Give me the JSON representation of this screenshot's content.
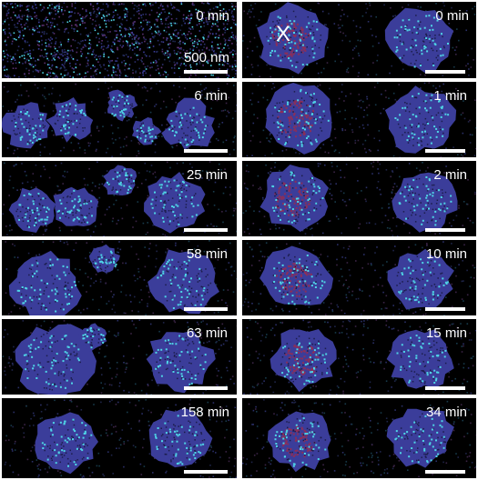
{
  "colors": {
    "background": "#000000",
    "domain_blue": "#3b3d9a",
    "cyan_dots": "#4fd4e6",
    "red_region": "#8a2f5a",
    "frame": "#ffffff"
  },
  "left_column": [
    {
      "time": "0 min",
      "scale_bar_label": "500 nm"
    },
    {
      "time": "6 min"
    },
    {
      "time": "25 min"
    },
    {
      "time": "58 min"
    },
    {
      "time": "63 min"
    },
    {
      "time": "158 min"
    }
  ],
  "right_column": [
    {
      "time": "0 min",
      "marker": "X"
    },
    {
      "time": "1 min"
    },
    {
      "time": "2 min"
    },
    {
      "time": "10 min"
    },
    {
      "time": "15 min"
    },
    {
      "time": "34 min"
    }
  ]
}
